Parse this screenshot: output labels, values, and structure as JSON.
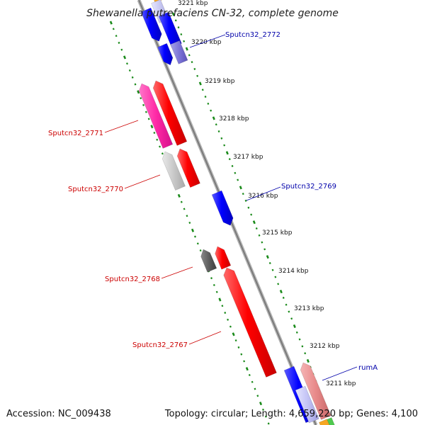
{
  "title": "Shewanella putrefaciens CN-32, complete genome",
  "accession_text": "Accession: NC_009438",
  "summary_text": "Topology: circular; Length: 4,659,220 bp; Genes: 4,100",
  "kbp_labels": [
    "3221 kbp",
    "3220 kbp",
    "3219 kbp",
    "3218 kbp",
    "3217 kbp",
    "3216 kbp",
    "3215 kbp",
    "3214 kbp",
    "3213 kbp",
    "3212 kbp",
    "3211 kbp"
  ],
  "gene_labels": {
    "g2772": "Sputcn32_2772",
    "g2771": "Sputcn32_2771",
    "g2770": "Sputcn32_2770",
    "g2769": "Sputcn32_2769",
    "g2768": "Sputcn32_2768",
    "g2767": "Sputcn32_2767",
    "rumA": "rumA"
  },
  "colors": {
    "plus_strand_label": "#0000aa",
    "minus_strand_label": "#cc0000",
    "backbone": "#8a8a8a",
    "tick_dots": "#1a8a1a"
  }
}
